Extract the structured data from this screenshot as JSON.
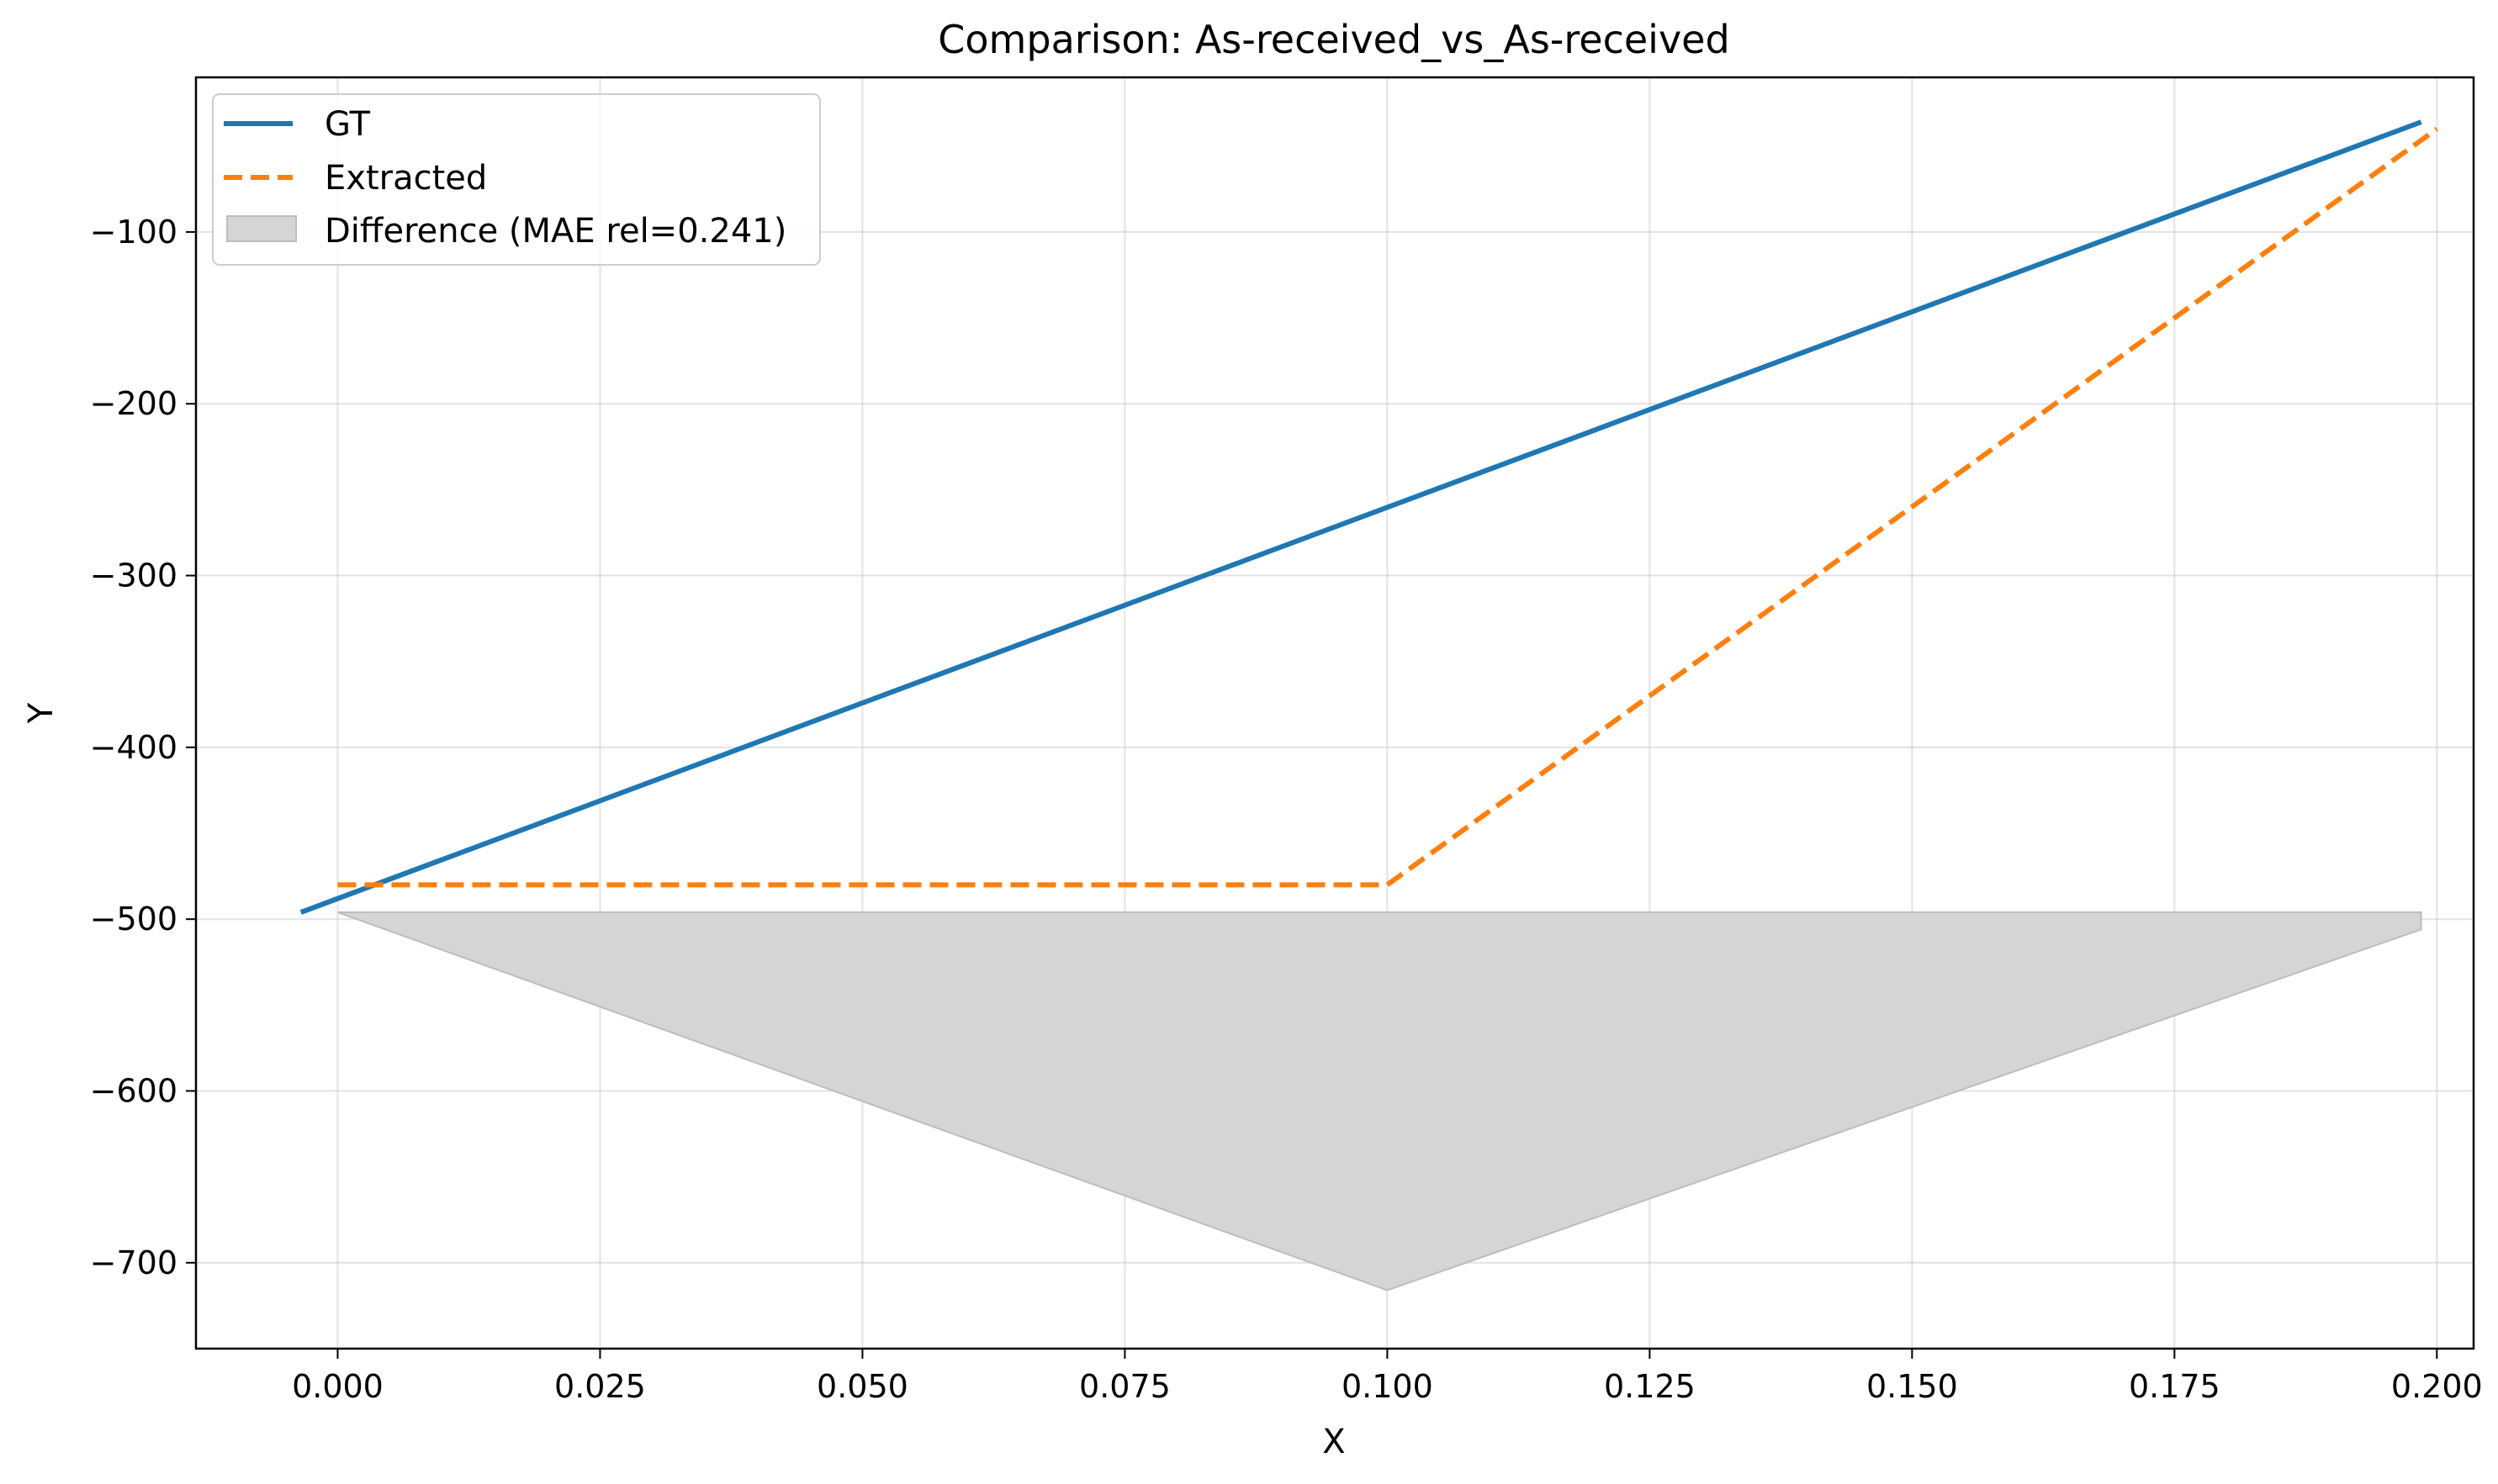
{
  "chart_data": {
    "type": "line",
    "title": "Comparison: As-received_vs_As-received",
    "xlabel": "X",
    "ylabel": "Y",
    "xlim": [
      -0.0135,
      0.2035
    ],
    "ylim": [
      -750,
      -10
    ],
    "x_ticks": [
      0.0,
      0.025,
      0.05,
      0.075,
      0.1,
      0.125,
      0.15,
      0.175,
      0.2
    ],
    "x_tick_labels": [
      "0.000",
      "0.025",
      "0.050",
      "0.075",
      "0.100",
      "0.125",
      "0.150",
      "0.175",
      "0.200"
    ],
    "y_ticks": [
      -100,
      -200,
      -300,
      -400,
      -500,
      -600,
      -700
    ],
    "y_tick_labels": [
      "−100",
      "−200",
      "−300",
      "−400",
      "−500",
      "−600",
      "−700"
    ],
    "grid": true,
    "legend_position": "top-left",
    "series": [
      {
        "name": "GT",
        "style": "solid",
        "color": "#1f77b4",
        "points": [
          [
            -0.0035,
            -496
          ],
          [
            0.1985,
            -36
          ]
        ]
      },
      {
        "name": "Extracted",
        "style": "dashed",
        "color": "#ff7f0e",
        "points": [
          [
            0.0,
            -480
          ],
          [
            0.1,
            -480
          ],
          [
            0.2,
            -40
          ]
        ]
      }
    ],
    "difference_area": {
      "name": "Difference (MAE rel=0.241)",
      "color": "#d5d5d5",
      "upper": [
        [
          0.0,
          -496
        ],
        [
          0.1985,
          -496
        ]
      ],
      "lower": [
        [
          0.0,
          -496
        ],
        [
          0.1,
          -716
        ],
        [
          0.1985,
          -506
        ]
      ]
    }
  }
}
